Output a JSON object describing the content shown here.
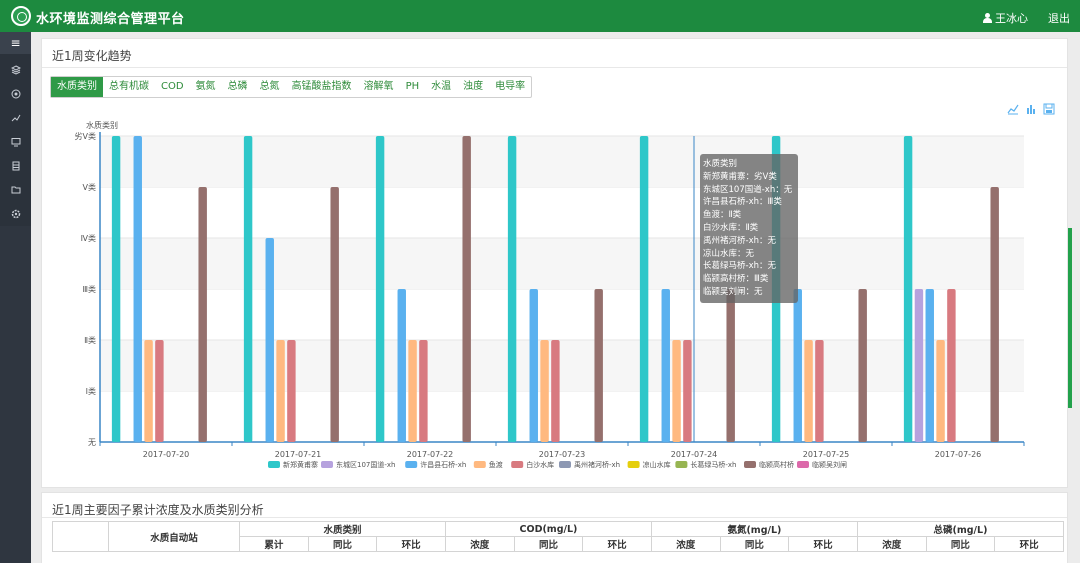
{
  "header": {
    "title": "水环境监测综合管理平台",
    "user": "王冰心",
    "logout": "退出"
  },
  "sidebar": {
    "toggle": "≡",
    "icons": [
      "layers-icon",
      "globe-icon",
      "chart-icon",
      "monitor-icon",
      "database-icon",
      "folder-icon",
      "settings-icon"
    ]
  },
  "trend_panel": {
    "title": "近1周变化趋势",
    "tabs": [
      "水质类别",
      "总有机碳",
      "COD",
      "氨氮",
      "总磷",
      "总氮",
      "高锰酸盐指数",
      "溶解氧",
      "PH",
      "水温",
      "浊度",
      "电导率"
    ],
    "active_tab": 0,
    "toolbar": [
      "line-chart-icon",
      "bar-chart-icon",
      "save-image-icon"
    ]
  },
  "chart_data": {
    "type": "bar",
    "ylabel": "水质类别",
    "categories": [
      "2017-07-20",
      "2017-07-21",
      "2017-07-22",
      "2017-07-23",
      "2017-07-24",
      "2017-07-25",
      "2017-07-26"
    ],
    "y_ticks": [
      "无",
      "Ⅰ类",
      "Ⅱ类",
      "Ⅲ类",
      "Ⅳ类",
      "Ⅴ类",
      "劣Ⅴ类"
    ],
    "ylim": [
      0,
      6
    ],
    "legend_position": "bottom",
    "series": [
      {
        "name": "新郑黄甫寨",
        "color": "#2ec7c9",
        "values": [
          6,
          6,
          6,
          6,
          6,
          6,
          6
        ]
      },
      {
        "name": "东城区107国道-xh",
        "color": "#b6a2de",
        "values": [
          0,
          0,
          0,
          0,
          0,
          0,
          3
        ]
      },
      {
        "name": "许昌县石桥-xh",
        "color": "#5ab1ef",
        "values": [
          6,
          4,
          3,
          3,
          3,
          3,
          3
        ]
      },
      {
        "name": "鱼渡",
        "color": "#ffb980",
        "values": [
          2,
          2,
          2,
          2,
          2,
          2,
          2
        ]
      },
      {
        "name": "白沙水库",
        "color": "#d87a80",
        "values": [
          2,
          2,
          2,
          2,
          2,
          2,
          3
        ]
      },
      {
        "name": "禹州褚河桥-xh",
        "color": "#8d98b3",
        "values": [
          0,
          0,
          0,
          0,
          0,
          0,
          0
        ]
      },
      {
        "name": "凉山水库",
        "color": "#e5cf0d",
        "values": [
          0,
          0,
          0,
          0,
          0,
          0,
          0
        ]
      },
      {
        "name": "长葛绿马桥-xh",
        "color": "#97b552",
        "values": [
          0,
          0,
          0,
          0,
          0,
          0,
          0
        ]
      },
      {
        "name": "临颍高村桥",
        "color": "#95706d",
        "values": [
          5,
          5,
          6,
          3,
          3,
          3,
          5
        ]
      },
      {
        "name": "临颍吴刘闸",
        "color": "#dc69aa",
        "values": [
          0,
          0,
          0,
          0,
          0,
          0,
          0
        ]
      }
    ]
  },
  "tooltip": {
    "title": "水质类别",
    "lines": [
      "新郑黄甫寨：劣Ⅴ类",
      "东城区107国道-xh：无",
      "许昌县石桥-xh：Ⅲ类",
      "鱼渡：Ⅱ类",
      "白沙水库：Ⅱ类",
      "禹州褚河桥-xh：无",
      "凉山水库：无",
      "长葛绿马桥-xh：无",
      "临颍高村桥：Ⅲ类",
      "临颍吴刘闸：无"
    ]
  },
  "summary_panel": {
    "title": "近1周主要因子累计浓度及水质类别分析",
    "station_header": "水质自动站",
    "groups": [
      "水质类别",
      "COD(mg/L)",
      "氨氮(mg/L)",
      "总磷(mg/L)"
    ],
    "sub_headers": [
      [
        "累计",
        "同比",
        "环比"
      ],
      [
        "浓度",
        "同比",
        "环比"
      ],
      [
        "浓度",
        "同比",
        "环比"
      ],
      [
        "浓度",
        "同比",
        "环比"
      ]
    ]
  }
}
